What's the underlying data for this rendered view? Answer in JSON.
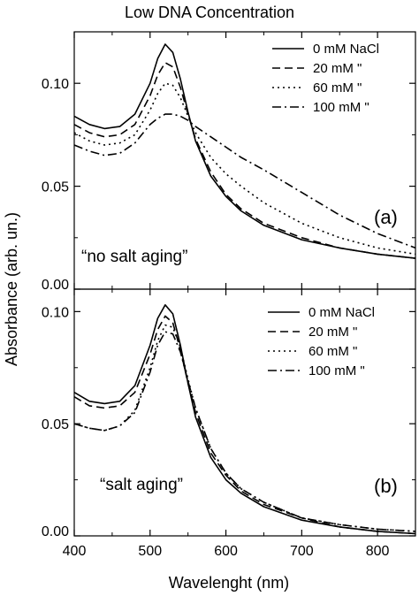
{
  "figure": {
    "title": "Low DNA Concentration",
    "ylabel": "Absorbance (arb. un.)",
    "xlabel": "Wavelenght (nm)"
  },
  "chart_data": [
    {
      "type": "line",
      "panel_label": "(a)",
      "annotation": "“no salt  aging”",
      "xlim": [
        400,
        850
      ],
      "ylim": [
        0,
        0.125
      ],
      "x_ticks": [
        400,
        500,
        600,
        700,
        800
      ],
      "x_tick_labels": [
        "400",
        "500",
        "600",
        "700",
        "800"
      ],
      "y_ticks": [
        0,
        0.05,
        0.1
      ],
      "y_tick_labels": [
        "0.00",
        "0.05",
        "0.10"
      ],
      "legend_position": "top-right",
      "legend": [
        "0 mM NaCl",
        "20 mM  \"",
        "60 mM  \"",
        "100 mM  \""
      ],
      "series": [
        {
          "name": "0 mM NaCl",
          "dash": "solid",
          "x": [
            400,
            420,
            440,
            460,
            480,
            500,
            510,
            520,
            530,
            540,
            550,
            560,
            580,
            600,
            620,
            650,
            700,
            750,
            800,
            850
          ],
          "y": [
            0.084,
            0.08,
            0.078,
            0.079,
            0.085,
            0.1,
            0.112,
            0.119,
            0.115,
            0.102,
            0.086,
            0.072,
            0.055,
            0.045,
            0.038,
            0.031,
            0.024,
            0.02,
            0.017,
            0.015
          ]
        },
        {
          "name": "20 mM  \"",
          "dash": "dash",
          "x": [
            400,
            420,
            440,
            460,
            480,
            500,
            510,
            520,
            530,
            540,
            550,
            560,
            580,
            600,
            620,
            650,
            700,
            750,
            800,
            850
          ],
          "y": [
            0.08,
            0.076,
            0.074,
            0.075,
            0.08,
            0.094,
            0.104,
            0.11,
            0.108,
            0.098,
            0.085,
            0.073,
            0.057,
            0.046,
            0.039,
            0.032,
            0.025,
            0.02,
            0.017,
            0.015
          ]
        },
        {
          "name": "60 mM  \"",
          "dash": "dot",
          "x": [
            400,
            420,
            440,
            460,
            480,
            500,
            510,
            520,
            530,
            540,
            550,
            560,
            580,
            600,
            620,
            650,
            700,
            750,
            800,
            850
          ],
          "y": [
            0.076,
            0.072,
            0.07,
            0.071,
            0.075,
            0.087,
            0.095,
            0.1,
            0.099,
            0.093,
            0.084,
            0.076,
            0.064,
            0.056,
            0.05,
            0.042,
            0.032,
            0.025,
            0.02,
            0.017
          ]
        },
        {
          "name": "100 mM  \"",
          "dash": "dashdot",
          "x": [
            400,
            420,
            440,
            460,
            480,
            500,
            510,
            520,
            530,
            540,
            550,
            560,
            580,
            600,
            620,
            650,
            700,
            750,
            800,
            850
          ],
          "y": [
            0.07,
            0.067,
            0.065,
            0.066,
            0.071,
            0.08,
            0.083,
            0.085,
            0.085,
            0.084,
            0.082,
            0.079,
            0.074,
            0.069,
            0.064,
            0.058,
            0.047,
            0.036,
            0.027,
            0.02
          ]
        }
      ]
    },
    {
      "type": "line",
      "panel_label": "(b)",
      "annotation": "“salt aging”",
      "xlim": [
        400,
        850
      ],
      "ylim": [
        0,
        0.11
      ],
      "x_ticks": [
        400,
        500,
        600,
        700,
        800
      ],
      "x_tick_labels": [
        "400",
        "500",
        "600",
        "700",
        "800"
      ],
      "y_ticks": [
        0,
        0.05,
        0.1
      ],
      "y_tick_labels": [
        "0.00",
        "0.05",
        "0.10"
      ],
      "legend_position": "top-right",
      "legend": [
        "0 mM NaCl",
        "20 mM  \"",
        "60 mM  \"",
        "100 mM  \""
      ],
      "series": [
        {
          "name": "0 mM NaCl",
          "dash": "solid",
          "x": [
            400,
            420,
            440,
            460,
            480,
            500,
            510,
            520,
            530,
            540,
            550,
            560,
            580,
            600,
            620,
            650,
            700,
            750,
            800,
            850
          ],
          "y": [
            0.064,
            0.06,
            0.059,
            0.06,
            0.067,
            0.085,
            0.097,
            0.103,
            0.099,
            0.085,
            0.068,
            0.053,
            0.035,
            0.025,
            0.019,
            0.013,
            0.007,
            0.004,
            0.002,
            0.001
          ]
        },
        {
          "name": "20 mM  \"",
          "dash": "dash",
          "x": [
            400,
            420,
            440,
            460,
            480,
            500,
            510,
            520,
            530,
            540,
            550,
            560,
            580,
            600,
            620,
            650,
            700,
            750,
            800,
            850
          ],
          "y": [
            0.062,
            0.058,
            0.057,
            0.058,
            0.064,
            0.081,
            0.092,
            0.098,
            0.095,
            0.083,
            0.068,
            0.055,
            0.037,
            0.027,
            0.02,
            0.014,
            0.008,
            0.004,
            0.002,
            0.001
          ]
        },
        {
          "name": "60 mM  \"",
          "dash": "dot",
          "x": [
            400,
            420,
            440,
            460,
            480,
            500,
            510,
            520,
            530,
            540,
            550,
            560,
            580,
            600,
            620,
            650,
            700,
            750,
            800,
            850
          ],
          "y": [
            0.05,
            0.048,
            0.047,
            0.049,
            0.056,
            0.075,
            0.087,
            0.094,
            0.093,
            0.084,
            0.07,
            0.057,
            0.039,
            0.028,
            0.021,
            0.015,
            0.008,
            0.005,
            0.003,
            0.002
          ]
        },
        {
          "name": "100 mM  \"",
          "dash": "dashdot",
          "x": [
            400,
            420,
            440,
            460,
            480,
            500,
            510,
            520,
            530,
            540,
            550,
            560,
            580,
            600,
            620,
            650,
            700,
            750,
            800,
            850
          ],
          "y": [
            0.05,
            0.048,
            0.047,
            0.049,
            0.055,
            0.073,
            0.085,
            0.091,
            0.09,
            0.082,
            0.069,
            0.057,
            0.039,
            0.028,
            0.021,
            0.015,
            0.008,
            0.005,
            0.003,
            0.002
          ]
        }
      ]
    }
  ]
}
